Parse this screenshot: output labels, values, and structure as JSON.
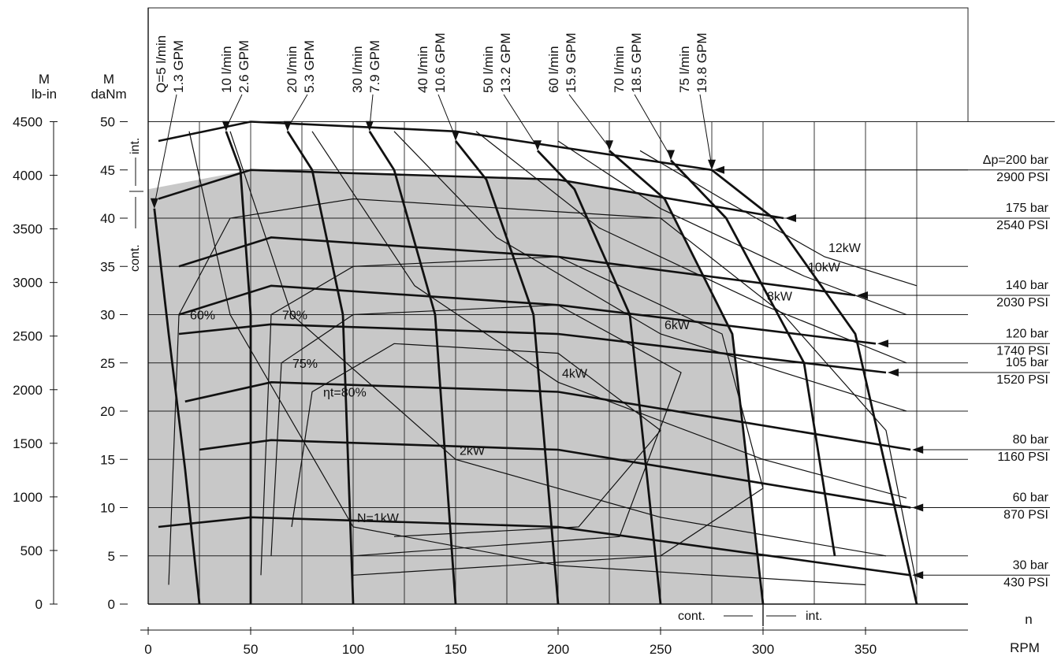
{
  "chart_data": {
    "type": "line",
    "subtype": "hydraulic-motor-performance-diagram",
    "x_axis": {
      "label": "n",
      "unit": "RPM",
      "range": [
        0,
        400
      ],
      "ticks": [
        0,
        50,
        100,
        150,
        200,
        250,
        300,
        350
      ]
    },
    "y_axis_left": {
      "label": "M",
      "unit": "daNm",
      "range": [
        0,
        50
      ],
      "ticks": [
        0,
        5,
        10,
        15,
        20,
        25,
        30,
        35,
        40,
        45,
        50
      ]
    },
    "y_axis_secondary": {
      "label": "M",
      "unit": "lb-in",
      "range": [
        0,
        4500
      ],
      "ticks": [
        0,
        500,
        1000,
        1500,
        2000,
        2500,
        3000,
        3500,
        4000,
        4500
      ]
    },
    "continuous_label": "cont.",
    "intermittent_label": "int.",
    "flow_lines": [
      {
        "label": "Q=5 l/min",
        "label2": "1.3 GPM",
        "values": [
          [
            3,
            41
          ],
          [
            10,
            28
          ],
          [
            18,
            14
          ],
          [
            25,
            0
          ]
        ]
      },
      {
        "label": "10 l/min",
        "label2": "2.6 GPM",
        "values": [
          [
            38,
            49
          ],
          [
            45,
            45
          ],
          [
            50,
            30
          ],
          [
            50,
            0
          ]
        ]
      },
      {
        "label": "20 l/min",
        "label2": "5.3 GPM",
        "values": [
          [
            68,
            49
          ],
          [
            80,
            45
          ],
          [
            95,
            30
          ],
          [
            100,
            0
          ]
        ]
      },
      {
        "label": "30 l/min",
        "label2": "7.9 GPM",
        "values": [
          [
            108,
            49
          ],
          [
            120,
            45
          ],
          [
            140,
            30
          ],
          [
            150,
            0
          ]
        ]
      },
      {
        "label": "40 l/min",
        "label2": "10.6 GPM",
        "values": [
          [
            150,
            48
          ],
          [
            165,
            44
          ],
          [
            188,
            30
          ],
          [
            200,
            0
          ]
        ]
      },
      {
        "label": "50 l/min",
        "label2": "13.2 GPM",
        "values": [
          [
            190,
            47
          ],
          [
            208,
            43
          ],
          [
            235,
            30
          ],
          [
            250,
            0
          ]
        ]
      },
      {
        "label": "60 l/min",
        "label2": "15.9 GPM",
        "values": [
          [
            225,
            47
          ],
          [
            252,
            42
          ],
          [
            285,
            28
          ],
          [
            300,
            0
          ]
        ]
      },
      {
        "label": "70 l/min",
        "label2": "18.5 GPM",
        "values": [
          [
            255,
            46
          ],
          [
            282,
            40
          ],
          [
            320,
            25
          ],
          [
            335,
            5
          ]
        ]
      },
      {
        "label": "75 l/min",
        "label2": "19.8 GPM",
        "values": [
          [
            275,
            45
          ],
          [
            305,
            40
          ],
          [
            345,
            28
          ],
          [
            375,
            0
          ]
        ]
      }
    ],
    "pressure_lines": [
      {
        "label": "Δp=200 bar",
        "label2": "2900 PSI",
        "values": [
          [
            5,
            48
          ],
          [
            50,
            50
          ],
          [
            150,
            49
          ],
          [
            275,
            45
          ]
        ]
      },
      {
        "label": "175 bar",
        "label2": "2540 PSI",
        "values": [
          [
            5,
            42
          ],
          [
            50,
            45
          ],
          [
            200,
            44
          ],
          [
            310,
            40
          ]
        ]
      },
      {
        "label": "140 bar",
        "label2": "2030 PSI",
        "values": [
          [
            15,
            35
          ],
          [
            60,
            38
          ],
          [
            200,
            36
          ],
          [
            345,
            32
          ]
        ]
      },
      {
        "label": "120 bar",
        "label2": "1740 PSI",
        "values": [
          [
            15,
            30
          ],
          [
            60,
            33
          ],
          [
            200,
            31
          ],
          [
            355,
            27
          ]
        ]
      },
      {
        "label": "105 bar",
        "label2": "1520 PSI",
        "values": [
          [
            15,
            28
          ],
          [
            60,
            29
          ],
          [
            200,
            28
          ],
          [
            360,
            24
          ]
        ]
      },
      {
        "label": "80 bar",
        "label2": "1160 PSI",
        "values": [
          [
            18,
            21
          ],
          [
            60,
            23
          ],
          [
            200,
            22
          ],
          [
            372,
            16
          ]
        ]
      },
      {
        "label": "60 bar",
        "label2": "870 PSI",
        "values": [
          [
            25,
            16
          ],
          [
            60,
            17
          ],
          [
            200,
            16
          ],
          [
            372,
            10
          ]
        ]
      },
      {
        "label": "30 bar",
        "label2": "430 PSI",
        "values": [
          [
            5,
            8
          ],
          [
            50,
            9
          ],
          [
            200,
            8
          ],
          [
            372,
            3
          ]
        ]
      }
    ],
    "power_lines": [
      {
        "label": "N=1kW",
        "values": [
          [
            20,
            49
          ],
          [
            40,
            30
          ],
          [
            100,
            8
          ],
          [
            200,
            4
          ],
          [
            350,
            2
          ]
        ]
      },
      {
        "label": "2kW",
        "values": [
          [
            40,
            49
          ],
          [
            70,
            30
          ],
          [
            150,
            15
          ],
          [
            250,
            9
          ],
          [
            360,
            5
          ]
        ]
      },
      {
        "label": "4kW",
        "values": [
          [
            80,
            49
          ],
          [
            130,
            33
          ],
          [
            200,
            23
          ],
          [
            300,
            15
          ],
          [
            370,
            11
          ]
        ]
      },
      {
        "label": "6kW",
        "values": [
          [
            120,
            49
          ],
          [
            170,
            38
          ],
          [
            250,
            28
          ],
          [
            370,
            20
          ]
        ]
      },
      {
        "label": "8kW",
        "values": [
          [
            160,
            49
          ],
          [
            220,
            39
          ],
          [
            300,
            31
          ],
          [
            370,
            25
          ]
        ]
      },
      {
        "label": "10kW",
        "values": [
          [
            200,
            48
          ],
          [
            250,
            41
          ],
          [
            320,
            34
          ],
          [
            370,
            30
          ]
        ]
      },
      {
        "label": "12kW",
        "values": [
          [
            240,
            47
          ],
          [
            280,
            42
          ],
          [
            330,
            36
          ],
          [
            375,
            33
          ]
        ]
      }
    ],
    "efficiency_lines": [
      {
        "label": "60%",
        "values": [
          [
            10,
            2
          ],
          [
            15,
            30
          ],
          [
            40,
            40
          ],
          [
            100,
            42
          ],
          [
            250,
            40
          ],
          [
            310,
            30
          ],
          [
            360,
            18
          ],
          [
            375,
            2
          ]
        ]
      },
      {
        "label": "70%",
        "values": [
          [
            55,
            3
          ],
          [
            60,
            30
          ],
          [
            100,
            35
          ],
          [
            200,
            36
          ],
          [
            280,
            28
          ],
          [
            300,
            12
          ],
          [
            250,
            5
          ],
          [
            100,
            3
          ]
        ]
      },
      {
        "label": "75%",
        "values": [
          [
            60,
            5
          ],
          [
            65,
            25
          ],
          [
            100,
            30
          ],
          [
            200,
            31
          ],
          [
            260,
            24
          ],
          [
            230,
            7
          ],
          [
            100,
            5
          ]
        ]
      },
      {
        "label": "ηt=80%",
        "values": [
          [
            70,
            8
          ],
          [
            80,
            22
          ],
          [
            120,
            27
          ],
          [
            200,
            26
          ],
          [
            250,
            18
          ],
          [
            210,
            8
          ],
          [
            120,
            7
          ]
        ]
      }
    ],
    "shaded_region_label": "continuous operation area"
  }
}
